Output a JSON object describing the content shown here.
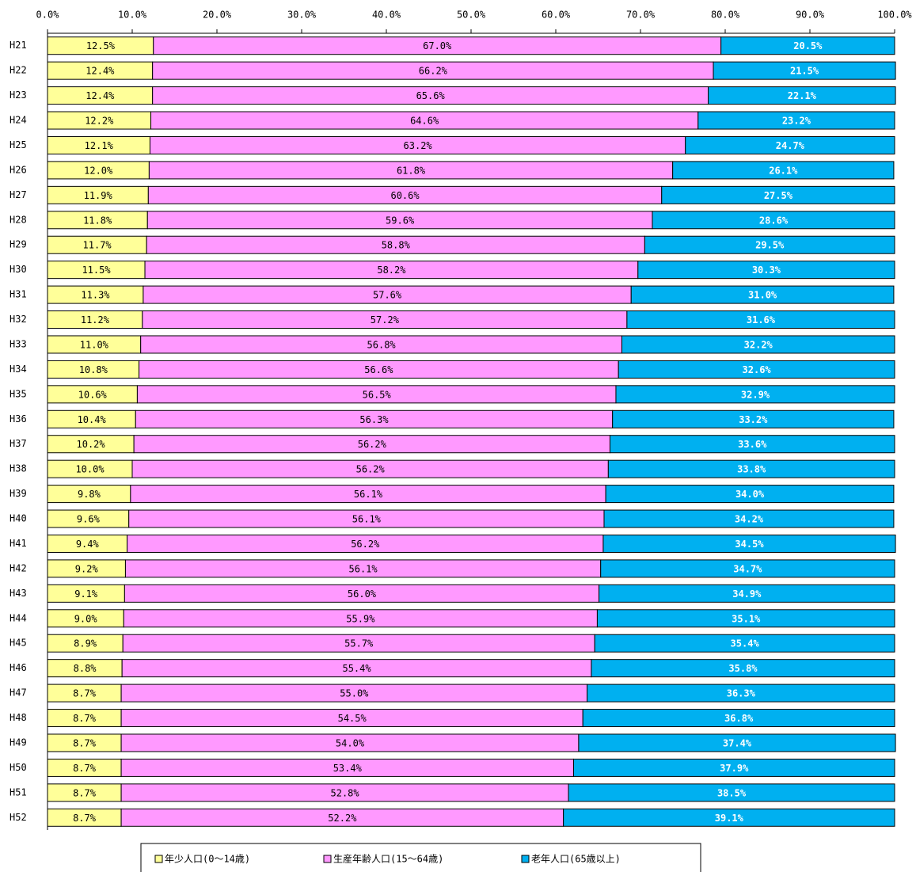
{
  "chart_data": {
    "type": "stacked_barh",
    "categories": [
      "H21",
      "H22",
      "H23",
      "H24",
      "H25",
      "H26",
      "H27",
      "H28",
      "H29",
      "H30",
      "H31",
      "H32",
      "H33",
      "H34",
      "H35",
      "H36",
      "H37",
      "H38",
      "H39",
      "H40",
      "H41",
      "H42",
      "H43",
      "H44",
      "H45",
      "H46",
      "H47",
      "H48",
      "H49",
      "H50",
      "H51",
      "H52"
    ],
    "series": [
      {
        "name": "年少人口(0～14歳)",
        "color": "#ffff99",
        "values": [
          12.5,
          12.4,
          12.4,
          12.2,
          12.1,
          12.0,
          11.9,
          11.8,
          11.7,
          11.5,
          11.3,
          11.2,
          11.0,
          10.8,
          10.6,
          10.4,
          10.2,
          10.0,
          9.8,
          9.6,
          9.4,
          9.2,
          9.1,
          9.0,
          8.9,
          8.8,
          8.7,
          8.7,
          8.7,
          8.7,
          8.7,
          8.7
        ],
        "value_labels": [
          "12.5%",
          "12.4%",
          "12.4%",
          "12.2%",
          "12.1%",
          "12.0%",
          "11.9%",
          "11.8%",
          "11.7%",
          "11.5%",
          "11.3%",
          "11.2%",
          "11.0%",
          "10.8%",
          "10.6%",
          "10.4%",
          "10.2%",
          "10.0%",
          "9.8%",
          "9.6%",
          "9.4%",
          "9.2%",
          "9.1%",
          "9.0%",
          "8.9%",
          "8.8%",
          "8.7%",
          "8.7%",
          "8.7%",
          "8.7%",
          "8.7%",
          "8.7%"
        ]
      },
      {
        "name": "生産年齢人口(15～64歳)",
        "color": "#ff99ff",
        "values": [
          67.0,
          66.2,
          65.6,
          64.6,
          63.2,
          61.8,
          60.6,
          59.6,
          58.8,
          58.2,
          57.6,
          57.2,
          56.8,
          56.6,
          56.5,
          56.3,
          56.2,
          56.2,
          56.1,
          56.1,
          56.2,
          56.1,
          56.0,
          55.9,
          55.7,
          55.4,
          55.0,
          54.5,
          54.0,
          53.4,
          52.8,
          52.2
        ],
        "value_labels": [
          "67.0%",
          "66.2%",
          "65.6%",
          "64.6%",
          "63.2%",
          "61.8%",
          "60.6%",
          "59.6%",
          "58.8%",
          "58.2%",
          "57.6%",
          "57.2%",
          "56.8%",
          "56.6%",
          "56.5%",
          "56.3%",
          "56.2%",
          "56.2%",
          "56.1%",
          "56.1%",
          "56.2%",
          "56.1%",
          "56.0%",
          "55.9%",
          "55.7%",
          "55.4%",
          "55.0%",
          "54.5%",
          "54.0%",
          "53.4%",
          "52.8%",
          "52.2%"
        ]
      },
      {
        "name": "老年人口(65歳以上)",
        "color": "#00b0f0",
        "values": [
          20.5,
          21.5,
          22.1,
          23.2,
          24.7,
          26.1,
          27.5,
          28.6,
          29.5,
          30.3,
          31.0,
          31.6,
          32.2,
          32.6,
          32.9,
          33.2,
          33.6,
          33.8,
          34.0,
          34.2,
          34.5,
          34.7,
          34.9,
          35.1,
          35.4,
          35.8,
          36.3,
          36.8,
          37.4,
          37.9,
          38.5,
          39.1
        ],
        "value_labels": [
          "20.5%",
          "21.5%",
          "22.1%",
          "23.2%",
          "24.7%",
          "26.1%",
          "27.5%",
          "28.6%",
          "29.5%",
          "30.3%",
          "31.0%",
          "31.6%",
          "32.2%",
          "32.6%",
          "32.9%",
          "33.2%",
          "33.6%",
          "33.8%",
          "34.0%",
          "34.2%",
          "34.5%",
          "34.7%",
          "34.9%",
          "35.1%",
          "35.4%",
          "35.8%",
          "36.3%",
          "36.8%",
          "37.4%",
          "37.9%",
          "38.5%",
          "39.1%"
        ]
      }
    ],
    "xlim": [
      0,
      100
    ],
    "xticks": [
      {
        "value": 0,
        "label": "0.0%"
      },
      {
        "value": 10,
        "label": "10.0%"
      },
      {
        "value": 20,
        "label": "20.0%"
      },
      {
        "value": 30,
        "label": "30.0%"
      },
      {
        "value": 40,
        "label": "40.0%"
      },
      {
        "value": 50,
        "label": "50.0%"
      },
      {
        "value": 60,
        "label": "60.0%"
      },
      {
        "value": 70,
        "label": "70.0%"
      },
      {
        "value": 80,
        "label": "80.0%"
      },
      {
        "value": 90,
        "label": "90.0%"
      },
      {
        "value": 100,
        "label": "100.0%"
      }
    ],
    "legend": "bottom"
  }
}
